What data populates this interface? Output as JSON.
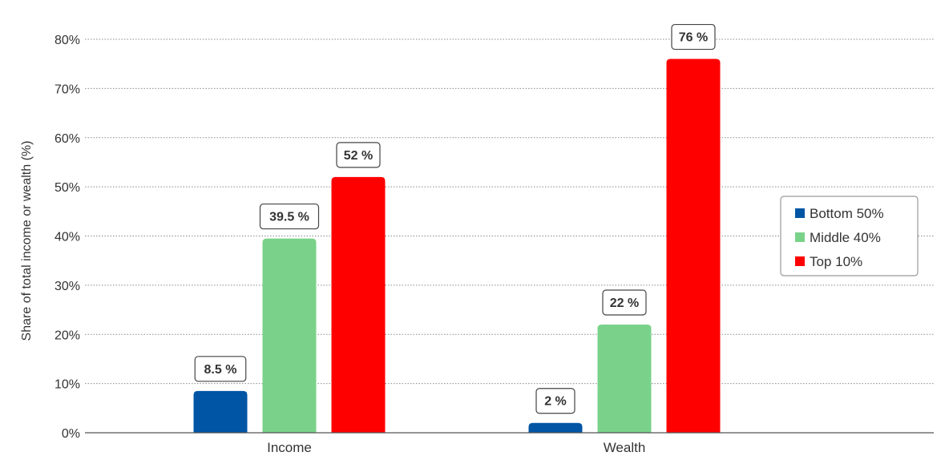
{
  "chart_data": {
    "type": "bar",
    "categories": [
      "Income",
      "Wealth"
    ],
    "series": [
      {
        "name": "Bottom 50%",
        "values": [
          8.5,
          2
        ],
        "labels": [
          "8.5 %",
          "2 %"
        ],
        "color": "#0055a4"
      },
      {
        "name": "Middle 40%",
        "values": [
          39.5,
          22
        ],
        "labels": [
          "39.5 %",
          "22 %"
        ],
        "color": "#7ad28a"
      },
      {
        "name": "Top 10%",
        "values": [
          52,
          76
        ],
        "labels": [
          "52 %",
          "76 %"
        ],
        "color": "#ff0000"
      }
    ],
    "ylabel": "Share of total income or wealth (%)",
    "xlabel": "",
    "ylim": [
      0,
      80
    ],
    "yticks": [
      0,
      10,
      20,
      30,
      40,
      50,
      60,
      70,
      80
    ],
    "ytick_labels": [
      "0%",
      "10%",
      "20%",
      "30%",
      "40%",
      "50%",
      "60%",
      "70%",
      "80%"
    ],
    "grid": true,
    "legend_position": "right"
  }
}
